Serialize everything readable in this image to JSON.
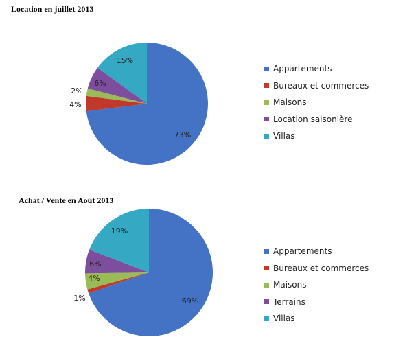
{
  "chart_data": [
    {
      "type": "pie",
      "title": "Location en juillet 2013",
      "categories": [
        "Appartements",
        "Bureaux et commerces",
        "Maisons",
        "Location saisonière",
        "Villas"
      ],
      "values": [
        73,
        4,
        2,
        6,
        15
      ],
      "labels": [
        "73%",
        "4%",
        "2%",
        "6%",
        "15%"
      ],
      "colors": [
        "#4472C4",
        "#C0392B",
        "#9BBB59",
        "#7D4E9E",
        "#35A9C4"
      ],
      "legend": "right"
    },
    {
      "type": "pie",
      "title": "Achat / Vente en Août 2013",
      "categories": [
        "Appartements",
        "Bureaux et commerces",
        "Maisons",
        "Terrains",
        "Villas"
      ],
      "values": [
        69,
        1,
        4,
        6,
        19
      ],
      "labels": [
        "69%",
        "1%",
        "4%",
        "6%",
        "19%"
      ],
      "colors": [
        "#4472C4",
        "#C0392B",
        "#9BBB59",
        "#7D4E9E",
        "#35A9C4"
      ],
      "legend": "right"
    }
  ]
}
